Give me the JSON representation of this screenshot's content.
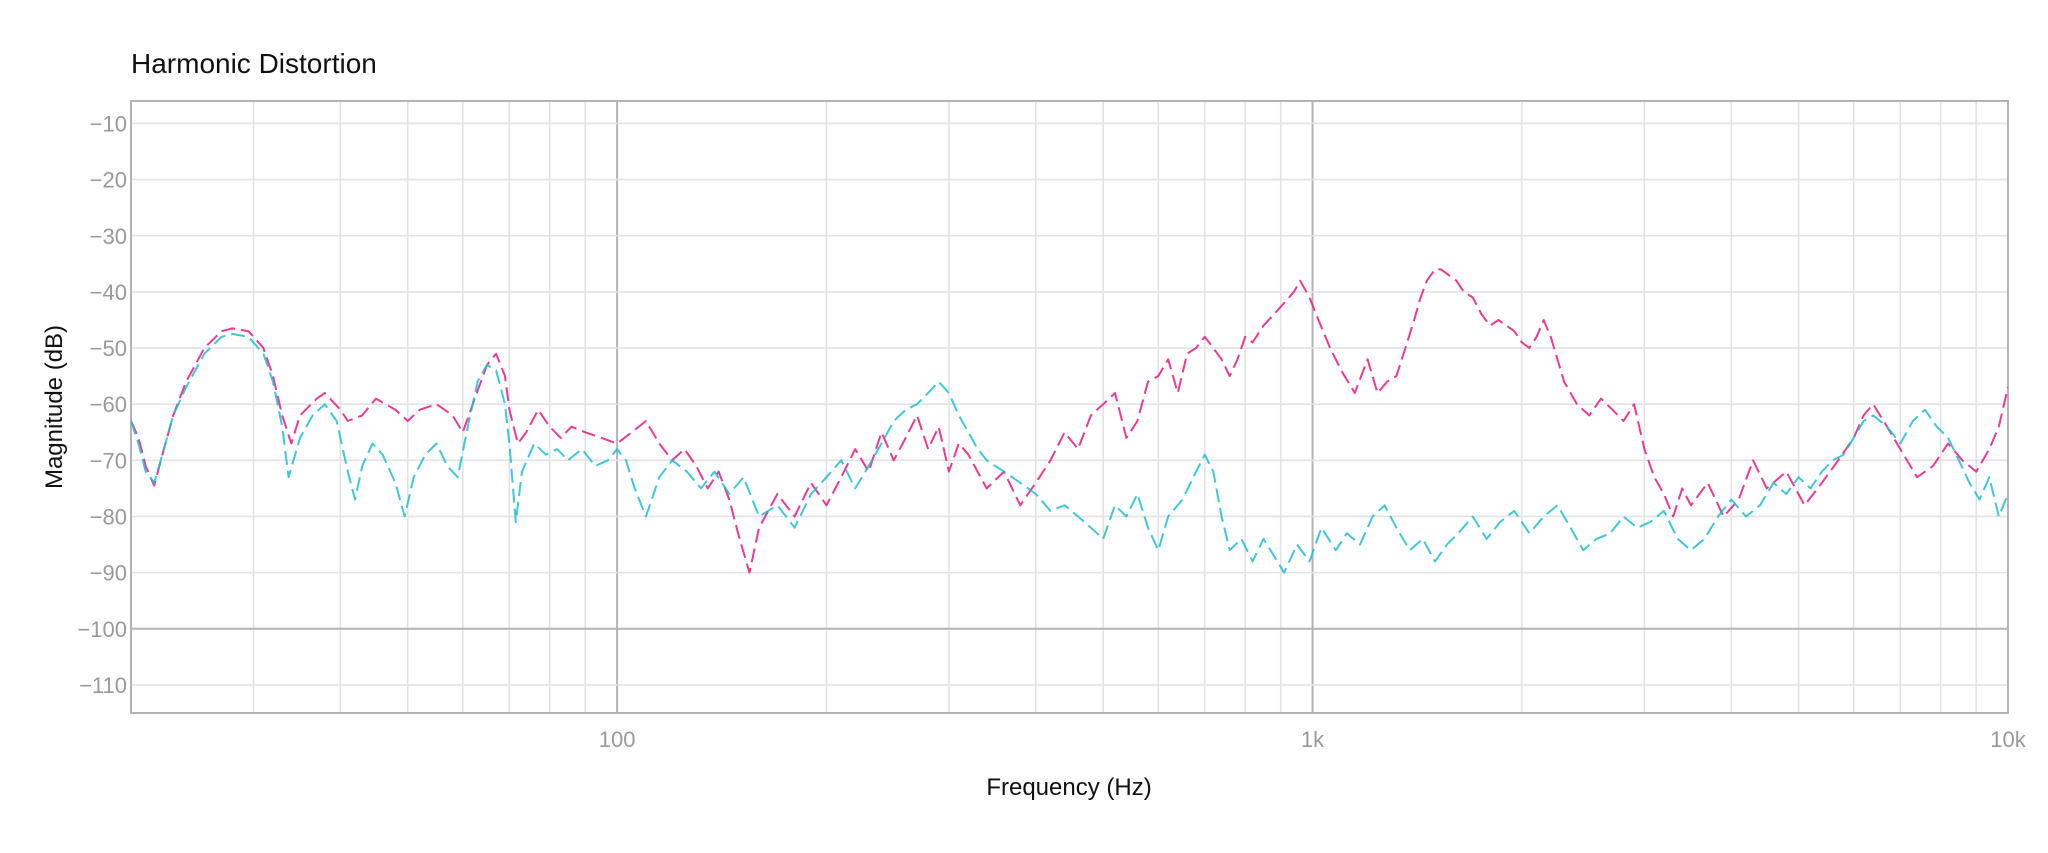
{
  "chart_data": {
    "type": "line",
    "title": "Harmonic Distortion",
    "xlabel": "Frequency (Hz)",
    "ylabel": "Magnitude (dB)",
    "x_scale": "log",
    "xlim": [
      20,
      10000
    ],
    "ylim": [
      -115,
      -6
    ],
    "x_ticks": [
      100,
      1000,
      10000
    ],
    "x_tick_labels": [
      "100",
      "1k",
      "10k"
    ],
    "y_ticks": [
      -10,
      -20,
      -30,
      -40,
      -50,
      -60,
      -70,
      -80,
      -90,
      -100,
      -110
    ],
    "y_tick_labels": [
      "−10",
      "−20",
      "−30",
      "−40",
      "−50",
      "−60",
      "−70",
      "−80",
      "−90",
      "−100",
      "−110"
    ],
    "grid": true,
    "legend": "none",
    "series": [
      {
        "color": "#e9177f",
        "line_style": "dashed",
        "points": [
          [
            20,
            -63
          ],
          [
            20.5,
            -66
          ],
          [
            21,
            -71
          ],
          [
            21.6,
            -74.5
          ],
          [
            22.3,
            -68
          ],
          [
            23,
            -62
          ],
          [
            24,
            -56
          ],
          [
            25.5,
            -50
          ],
          [
            27,
            -47
          ],
          [
            28,
            -46.5
          ],
          [
            29.5,
            -47
          ],
          [
            31,
            -50
          ],
          [
            32,
            -55
          ],
          [
            33,
            -62
          ],
          [
            34,
            -67
          ],
          [
            35,
            -62
          ],
          [
            37,
            -59
          ],
          [
            38,
            -58
          ],
          [
            40,
            -61
          ],
          [
            41,
            -63
          ],
          [
            43,
            -62
          ],
          [
            45,
            -59
          ],
          [
            48,
            -61
          ],
          [
            50,
            -63
          ],
          [
            52,
            -61
          ],
          [
            55,
            -60
          ],
          [
            58,
            -62
          ],
          [
            60,
            -65
          ],
          [
            62,
            -60
          ],
          [
            65,
            -53
          ],
          [
            67,
            -51
          ],
          [
            69,
            -55
          ],
          [
            70,
            -61
          ],
          [
            72,
            -67
          ],
          [
            74,
            -65
          ],
          [
            77,
            -61
          ],
          [
            80,
            -64
          ],
          [
            83,
            -66
          ],
          [
            86,
            -64
          ],
          [
            90,
            -65
          ],
          [
            95,
            -66
          ],
          [
            100,
            -67
          ],
          [
            105,
            -65
          ],
          [
            110,
            -63
          ],
          [
            115,
            -67
          ],
          [
            120,
            -70
          ],
          [
            125,
            -68
          ],
          [
            130,
            -71
          ],
          [
            135,
            -75
          ],
          [
            140,
            -72
          ],
          [
            145,
            -77
          ],
          [
            150,
            -84
          ],
          [
            155,
            -90
          ],
          [
            160,
            -82
          ],
          [
            170,
            -76
          ],
          [
            180,
            -80
          ],
          [
            190,
            -74
          ],
          [
            200,
            -78
          ],
          [
            210,
            -73
          ],
          [
            220,
            -68
          ],
          [
            230,
            -72
          ],
          [
            240,
            -65
          ],
          [
            250,
            -70
          ],
          [
            260,
            -66
          ],
          [
            270,
            -62
          ],
          [
            280,
            -68
          ],
          [
            290,
            -64
          ],
          [
            300,
            -72
          ],
          [
            310,
            -67
          ],
          [
            320,
            -69
          ],
          [
            340,
            -75
          ],
          [
            360,
            -72
          ],
          [
            380,
            -78
          ],
          [
            400,
            -74
          ],
          [
            420,
            -70
          ],
          [
            440,
            -65
          ],
          [
            460,
            -68
          ],
          [
            480,
            -62
          ],
          [
            500,
            -60
          ],
          [
            520,
            -58
          ],
          [
            540,
            -66
          ],
          [
            560,
            -63
          ],
          [
            580,
            -56
          ],
          [
            600,
            -55
          ],
          [
            620,
            -52
          ],
          [
            640,
            -58
          ],
          [
            660,
            -51
          ],
          [
            680,
            -50
          ],
          [
            700,
            -48
          ],
          [
            720,
            -50
          ],
          [
            740,
            -52
          ],
          [
            760,
            -55
          ],
          [
            780,
            -52
          ],
          [
            800,
            -48
          ],
          [
            820,
            -49
          ],
          [
            850,
            -46
          ],
          [
            880,
            -44
          ],
          [
            910,
            -42
          ],
          [
            940,
            -40
          ],
          [
            960,
            -38
          ],
          [
            990,
            -41
          ],
          [
            1020,
            -45
          ],
          [
            1060,
            -50
          ],
          [
            1100,
            -54
          ],
          [
            1150,
            -58
          ],
          [
            1200,
            -52
          ],
          [
            1240,
            -58
          ],
          [
            1280,
            -56
          ],
          [
            1320,
            -55
          ],
          [
            1360,
            -50
          ],
          [
            1400,
            -45
          ],
          [
            1430,
            -41
          ],
          [
            1460,
            -38
          ],
          [
            1500,
            -36
          ],
          [
            1530,
            -36
          ],
          [
            1570,
            -37
          ],
          [
            1610,
            -38
          ],
          [
            1650,
            -40
          ],
          [
            1700,
            -41
          ],
          [
            1750,
            -44
          ],
          [
            1800,
            -46
          ],
          [
            1850,
            -45
          ],
          [
            1900,
            -46
          ],
          [
            1950,
            -47
          ],
          [
            2000,
            -49
          ],
          [
            2050,
            -50
          ],
          [
            2100,
            -48
          ],
          [
            2150,
            -45
          ],
          [
            2200,
            -48
          ],
          [
            2250,
            -52
          ],
          [
            2300,
            -56
          ],
          [
            2400,
            -60
          ],
          [
            2500,
            -62
          ],
          [
            2600,
            -59
          ],
          [
            2700,
            -61
          ],
          [
            2800,
            -63
          ],
          [
            2900,
            -60
          ],
          [
            3000,
            -68
          ],
          [
            3100,
            -73
          ],
          [
            3200,
            -76
          ],
          [
            3300,
            -80
          ],
          [
            3400,
            -75
          ],
          [
            3500,
            -78
          ],
          [
            3700,
            -74
          ],
          [
            3900,
            -80
          ],
          [
            4100,
            -77
          ],
          [
            4300,
            -70
          ],
          [
            4500,
            -75
          ],
          [
            4800,
            -72
          ],
          [
            5100,
            -78
          ],
          [
            5400,
            -74
          ],
          [
            5700,
            -70
          ],
          [
            6000,
            -66
          ],
          [
            6200,
            -62
          ],
          [
            6400,
            -60
          ],
          [
            6700,
            -64
          ],
          [
            7000,
            -68
          ],
          [
            7400,
            -73
          ],
          [
            7800,
            -71
          ],
          [
            8200,
            -67
          ],
          [
            8600,
            -70
          ],
          [
            9000,
            -72
          ],
          [
            9400,
            -68
          ],
          [
            9700,
            -64
          ],
          [
            10000,
            -57
          ]
        ]
      },
      {
        "color": "#1fbcd2",
        "line_style": "dashed",
        "points": [
          [
            20,
            -63
          ],
          [
            20.5,
            -67
          ],
          [
            21,
            -72
          ],
          [
            21.6,
            -74
          ],
          [
            22.3,
            -68
          ],
          [
            23,
            -62
          ],
          [
            24,
            -57
          ],
          [
            25.5,
            -51
          ],
          [
            27,
            -48
          ],
          [
            28,
            -47.5
          ],
          [
            29.5,
            -48
          ],
          [
            31,
            -51
          ],
          [
            32,
            -56
          ],
          [
            33,
            -64
          ],
          [
            33.7,
            -73
          ],
          [
            35,
            -66
          ],
          [
            36.5,
            -62
          ],
          [
            38,
            -60
          ],
          [
            39.5,
            -63
          ],
          [
            41,
            -72
          ],
          [
            42,
            -77
          ],
          [
            43,
            -71
          ],
          [
            44.5,
            -67
          ],
          [
            46,
            -69
          ],
          [
            48,
            -74
          ],
          [
            49.5,
            -80
          ],
          [
            51,
            -73
          ],
          [
            53,
            -69
          ],
          [
            55,
            -67
          ],
          [
            57,
            -71
          ],
          [
            59,
            -73
          ],
          [
            61,
            -64
          ],
          [
            63,
            -56
          ],
          [
            65,
            -53
          ],
          [
            67,
            -54
          ],
          [
            69,
            -60
          ],
          [
            70,
            -67
          ],
          [
            71.5,
            -81
          ],
          [
            73,
            -72
          ],
          [
            76,
            -67
          ],
          [
            79,
            -69
          ],
          [
            82,
            -68
          ],
          [
            85,
            -70
          ],
          [
            89,
            -68
          ],
          [
            93,
            -71
          ],
          [
            97,
            -70
          ],
          [
            100,
            -68
          ],
          [
            103,
            -70
          ],
          [
            106,
            -75
          ],
          [
            110,
            -80
          ],
          [
            115,
            -73
          ],
          [
            120,
            -70
          ],
          [
            126,
            -72
          ],
          [
            132,
            -75
          ],
          [
            138,
            -72
          ],
          [
            145,
            -76
          ],
          [
            152,
            -73
          ],
          [
            160,
            -80
          ],
          [
            170,
            -78
          ],
          [
            180,
            -82
          ],
          [
            190,
            -76
          ],
          [
            200,
            -73
          ],
          [
            210,
            -70
          ],
          [
            220,
            -75
          ],
          [
            230,
            -71
          ],
          [
            240,
            -67
          ],
          [
            250,
            -63
          ],
          [
            260,
            -61
          ],
          [
            270,
            -60
          ],
          [
            280,
            -58
          ],
          [
            290,
            -56
          ],
          [
            300,
            -58
          ],
          [
            310,
            -62
          ],
          [
            320,
            -65
          ],
          [
            330,
            -68
          ],
          [
            340,
            -70
          ],
          [
            360,
            -72
          ],
          [
            380,
            -74
          ],
          [
            400,
            -76
          ],
          [
            420,
            -79
          ],
          [
            440,
            -78
          ],
          [
            460,
            -80
          ],
          [
            480,
            -82
          ],
          [
            500,
            -84
          ],
          [
            520,
            -78
          ],
          [
            540,
            -80
          ],
          [
            560,
            -76
          ],
          [
            580,
            -82
          ],
          [
            600,
            -86
          ],
          [
            620,
            -80
          ],
          [
            650,
            -77
          ],
          [
            680,
            -72
          ],
          [
            700,
            -69
          ],
          [
            720,
            -72
          ],
          [
            740,
            -80
          ],
          [
            760,
            -86
          ],
          [
            790,
            -84
          ],
          [
            820,
            -88
          ],
          [
            850,
            -84
          ],
          [
            880,
            -87
          ],
          [
            910,
            -90
          ],
          [
            950,
            -85
          ],
          [
            990,
            -88
          ],
          [
            1030,
            -82
          ],
          [
            1080,
            -86
          ],
          [
            1120,
            -83
          ],
          [
            1170,
            -85
          ],
          [
            1220,
            -80
          ],
          [
            1270,
            -78
          ],
          [
            1320,
            -82
          ],
          [
            1380,
            -86
          ],
          [
            1440,
            -84
          ],
          [
            1500,
            -88
          ],
          [
            1560,
            -85
          ],
          [
            1620,
            -83
          ],
          [
            1700,
            -80
          ],
          [
            1780,
            -84
          ],
          [
            1860,
            -81
          ],
          [
            1950,
            -79
          ],
          [
            2050,
            -83
          ],
          [
            2150,
            -80
          ],
          [
            2250,
            -78
          ],
          [
            2350,
            -82
          ],
          [
            2450,
            -86
          ],
          [
            2560,
            -84
          ],
          [
            2680,
            -83
          ],
          [
            2800,
            -80
          ],
          [
            2930,
            -82
          ],
          [
            3060,
            -81
          ],
          [
            3200,
            -79
          ],
          [
            3350,
            -84
          ],
          [
            3500,
            -86
          ],
          [
            3660,
            -84
          ],
          [
            3830,
            -80
          ],
          [
            4000,
            -77
          ],
          [
            4200,
            -80
          ],
          [
            4400,
            -78
          ],
          [
            4600,
            -74
          ],
          [
            4800,
            -76
          ],
          [
            5000,
            -73
          ],
          [
            5200,
            -75
          ],
          [
            5400,
            -72
          ],
          [
            5600,
            -70
          ],
          [
            5800,
            -69
          ],
          [
            6000,
            -66
          ],
          [
            6200,
            -63
          ],
          [
            6400,
            -62
          ],
          [
            6700,
            -64
          ],
          [
            7000,
            -67
          ],
          [
            7300,
            -63
          ],
          [
            7600,
            -61
          ],
          [
            7900,
            -64
          ],
          [
            8200,
            -66
          ],
          [
            8500,
            -70
          ],
          [
            8800,
            -74
          ],
          [
            9100,
            -77
          ],
          [
            9400,
            -73
          ],
          [
            9700,
            -80
          ],
          [
            10000,
            -76
          ]
        ]
      }
    ]
  }
}
